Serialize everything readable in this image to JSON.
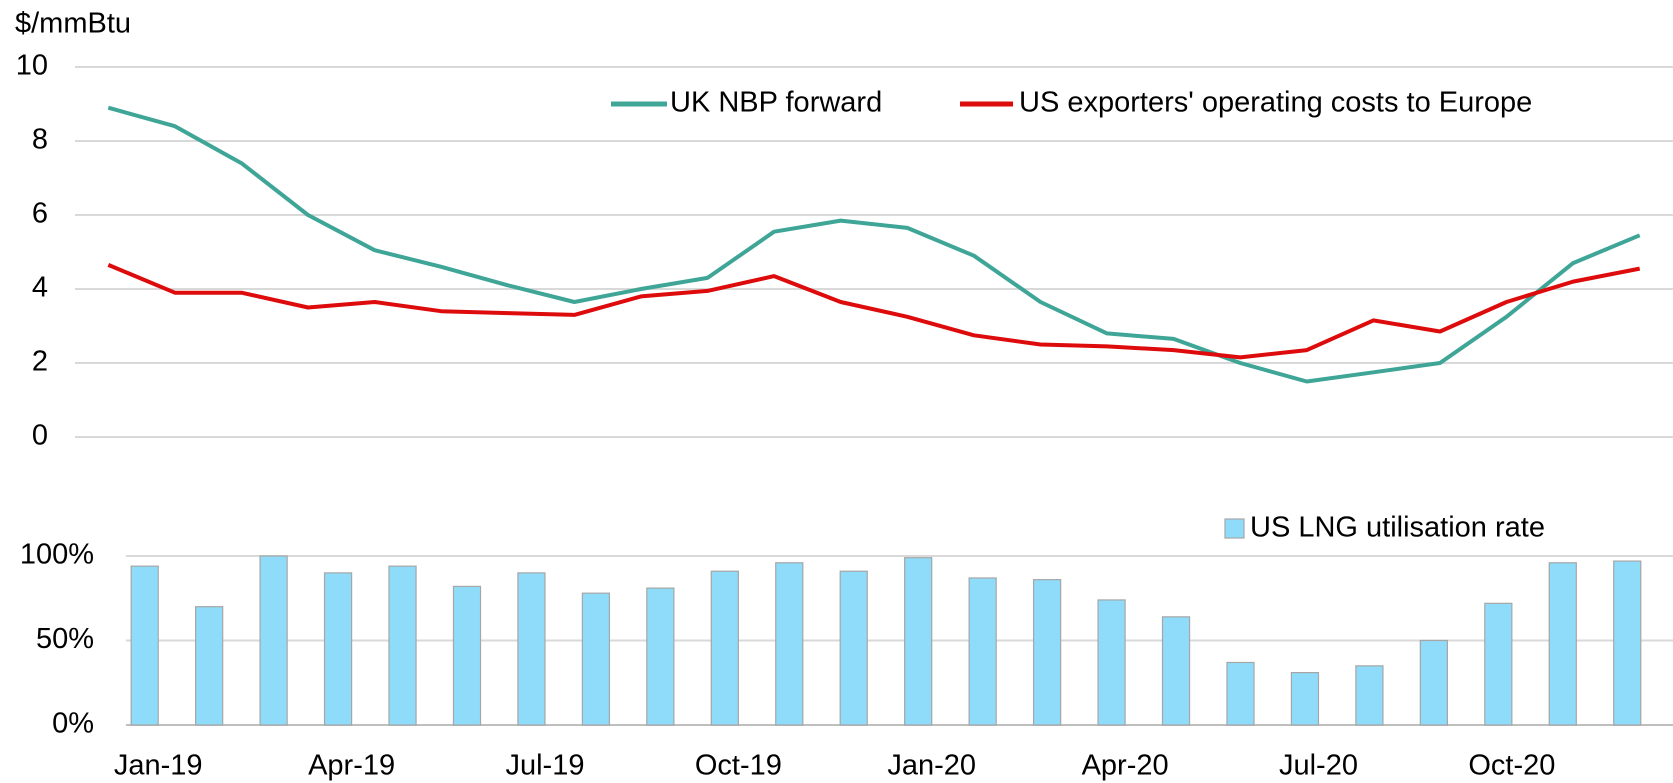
{
  "chart_data": [
    {
      "type": "line",
      "y_label": "$/mmBtu",
      "ylim": [
        0,
        10
      ],
      "yticks": [
        0,
        2,
        4,
        6,
        8,
        10
      ],
      "grid": true,
      "legend": "top-right",
      "series": [
        {
          "name": "UK NBP forward",
          "color": "#3ea597",
          "values": [
            8.9,
            8.4,
            7.4,
            6.0,
            5.05,
            4.6,
            4.1,
            3.65,
            4.0,
            4.3,
            5.55,
            5.85,
            5.65,
            4.9,
            3.65,
            2.8,
            2.65,
            2.0,
            1.5,
            1.75,
            2.0,
            3.25,
            4.7,
            5.45
          ]
        },
        {
          "name": "US exporters' operating costs to Europe",
          "color": "#dd0b0b",
          "values": [
            4.65,
            3.9,
            3.9,
            3.5,
            3.65,
            3.4,
            3.35,
            3.3,
            3.8,
            3.95,
            4.35,
            3.65,
            3.25,
            2.75,
            2.5,
            2.45,
            2.35,
            2.15,
            2.35,
            3.15,
            2.85,
            3.65,
            4.2,
            4.55
          ]
        }
      ]
    },
    {
      "type": "bar",
      "categories": [
        "Jan-19",
        null,
        null,
        "Apr-19",
        null,
        null,
        "Jul-19",
        null,
        null,
        "Oct-19",
        null,
        null,
        "Jan-20",
        null,
        null,
        "Apr-20",
        null,
        null,
        "Jul-20",
        null,
        null,
        "Oct-20",
        null,
        null
      ],
      "ylim": [
        0,
        100
      ],
      "yticks": [
        {
          "value": 0,
          "label": "0%"
        },
        {
          "value": 50,
          "label": "50%"
        },
        {
          "value": 100,
          "label": "100%"
        }
      ],
      "grid": true,
      "legend": "top-right",
      "series": [
        {
          "name": "US LNG utilisation rate",
          "color": "#8fdcfa",
          "values": [
            94,
            70,
            100,
            90,
            94,
            82,
            90,
            78,
            81,
            91,
            96,
            91,
            99,
            87,
            86,
            74,
            64,
            37,
            31,
            35,
            50,
            72,
            96,
            97
          ]
        }
      ]
    }
  ]
}
